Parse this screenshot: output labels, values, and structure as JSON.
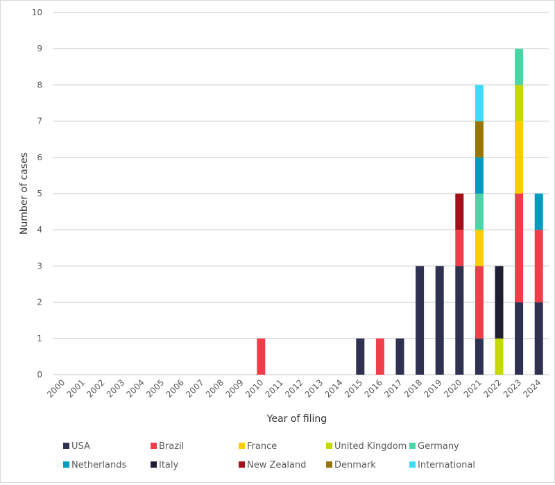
{
  "chart_data": {
    "type": "bar",
    "stacked": true,
    "title": "",
    "xlabel": "Year of filing",
    "ylabel": "Number of cases",
    "ylim": [
      0,
      10
    ],
    "yticks": [
      0,
      1,
      2,
      3,
      4,
      5,
      6,
      7,
      8,
      9,
      10
    ],
    "grid": true,
    "legend_position": "bottom",
    "categories": [
      "2000",
      "2001",
      "2002",
      "2003",
      "2004",
      "2005",
      "2006",
      "2007",
      "2008",
      "2009",
      "2010",
      "2011",
      "2012",
      "2013",
      "2014",
      "2015",
      "2016",
      "2017",
      "2018",
      "2019",
      "2020",
      "2021",
      "2022",
      "2023",
      "2024"
    ],
    "series": [
      {
        "name": "USA",
        "color": "#2e3150",
        "values": [
          0,
          0,
          0,
          0,
          0,
          0,
          0,
          0,
          0,
          0,
          0,
          0,
          0,
          0,
          0,
          1,
          0,
          1,
          3,
          3,
          3,
          1,
          0,
          2,
          2
        ]
      },
      {
        "name": "Brazil",
        "color": "#ef3e4a",
        "values": [
          0,
          0,
          0,
          0,
          0,
          0,
          0,
          0,
          0,
          0,
          1,
          0,
          0,
          0,
          0,
          0,
          1,
          0,
          0,
          0,
          1,
          2,
          0,
          3,
          2
        ]
      },
      {
        "name": "France",
        "color": "#ffcc00",
        "values": [
          0,
          0,
          0,
          0,
          0,
          0,
          0,
          0,
          0,
          0,
          0,
          0,
          0,
          0,
          0,
          0,
          0,
          0,
          0,
          0,
          0,
          1,
          0,
          2,
          0
        ]
      },
      {
        "name": "United Kingdom",
        "color": "#c5d800",
        "values": [
          0,
          0,
          0,
          0,
          0,
          0,
          0,
          0,
          0,
          0,
          0,
          0,
          0,
          0,
          0,
          0,
          0,
          0,
          0,
          0,
          0,
          0,
          1,
          1,
          0
        ]
      },
      {
        "name": "Germany",
        "color": "#48d6a9",
        "values": [
          0,
          0,
          0,
          0,
          0,
          0,
          0,
          0,
          0,
          0,
          0,
          0,
          0,
          0,
          0,
          0,
          0,
          0,
          0,
          0,
          0,
          1,
          0,
          1,
          0
        ]
      },
      {
        "name": "Netherlands",
        "color": "#009bbf",
        "values": [
          0,
          0,
          0,
          0,
          0,
          0,
          0,
          0,
          0,
          0,
          0,
          0,
          0,
          0,
          0,
          0,
          0,
          0,
          0,
          0,
          0,
          1,
          0,
          0,
          1
        ]
      },
      {
        "name": "Italy",
        "color": "#1e1f33",
        "values": [
          0,
          0,
          0,
          0,
          0,
          0,
          0,
          0,
          0,
          0,
          0,
          0,
          0,
          0,
          0,
          0,
          0,
          0,
          0,
          0,
          0,
          0,
          2,
          0,
          0
        ]
      },
      {
        "name": "New Zealand",
        "color": "#a30f1b",
        "values": [
          0,
          0,
          0,
          0,
          0,
          0,
          0,
          0,
          0,
          0,
          0,
          0,
          0,
          0,
          0,
          0,
          0,
          0,
          0,
          0,
          1,
          0,
          0,
          0,
          0
        ]
      },
      {
        "name": "Denmark",
        "color": "#967600",
        "values": [
          0,
          0,
          0,
          0,
          0,
          0,
          0,
          0,
          0,
          0,
          0,
          0,
          0,
          0,
          0,
          0,
          0,
          0,
          0,
          0,
          0,
          1,
          0,
          0,
          0
        ]
      },
      {
        "name": "International",
        "color": "#3ddcff",
        "values": [
          0,
          0,
          0,
          0,
          0,
          0,
          0,
          0,
          0,
          0,
          0,
          0,
          0,
          0,
          0,
          0,
          0,
          0,
          0,
          0,
          0,
          1,
          0,
          0,
          0
        ]
      }
    ]
  }
}
